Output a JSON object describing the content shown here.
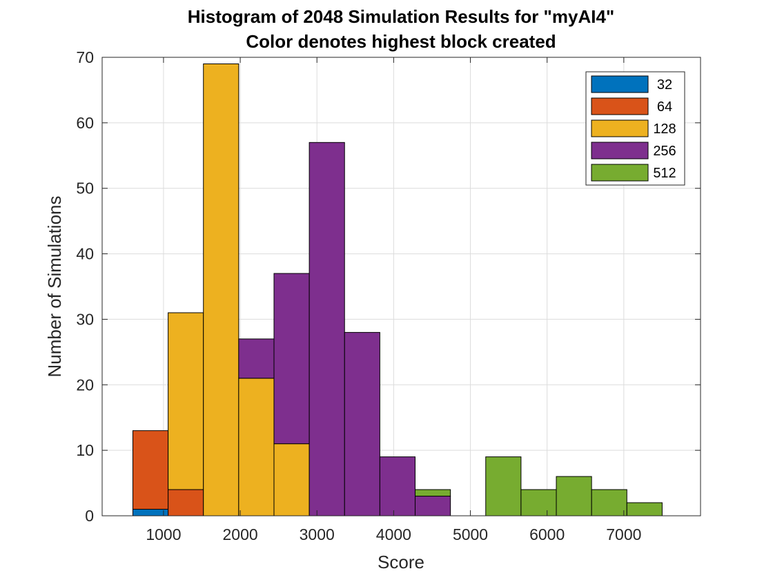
{
  "chart_data": {
    "type": "bar",
    "stacked": true,
    "title": "Histogram of 2048 Simulation Results for \"myAI4\"",
    "subtitle": "Color denotes highest block created",
    "xlabel": "Score",
    "ylabel": "Number of Simulations",
    "xlim": [
      200,
      8000
    ],
    "ylim": [
      0,
      70
    ],
    "xticks": [
      1000,
      2000,
      3000,
      4000,
      5000,
      6000,
      7000
    ],
    "yticks": [
      0,
      10,
      20,
      30,
      40,
      50,
      60,
      70
    ],
    "grid": true,
    "legend_position": "top-right",
    "bin_edges": [
      600,
      1060,
      1520,
      1980,
      2440,
      2900,
      3360,
      3820,
      4280,
      4740,
      5200,
      5660,
      6120,
      6580,
      7040,
      7500
    ],
    "series": [
      {
        "name": "32",
        "color": "#0072BD",
        "values": [
          1,
          0,
          0,
          0,
          0,
          0,
          0,
          0,
          0,
          0,
          0,
          0,
          0,
          0,
          0
        ]
      },
      {
        "name": "64",
        "color": "#D95319",
        "values": [
          12,
          4,
          0,
          0,
          0,
          0,
          0,
          0,
          0,
          0,
          0,
          0,
          0,
          0,
          0
        ]
      },
      {
        "name": "128",
        "color": "#EDB120",
        "values": [
          0,
          27,
          69,
          21,
          11,
          0,
          0,
          0,
          0,
          0,
          0,
          0,
          0,
          0,
          0
        ]
      },
      {
        "name": "256",
        "color": "#7E2F8E",
        "values": [
          0,
          0,
          0,
          6,
          26,
          57,
          28,
          9,
          3,
          0,
          0,
          0,
          0,
          0,
          0
        ]
      },
      {
        "name": "512",
        "color": "#77AC30",
        "values": [
          0,
          0,
          0,
          0,
          0,
          0,
          0,
          0,
          1,
          0,
          9,
          4,
          6,
          4,
          2
        ]
      }
    ]
  }
}
